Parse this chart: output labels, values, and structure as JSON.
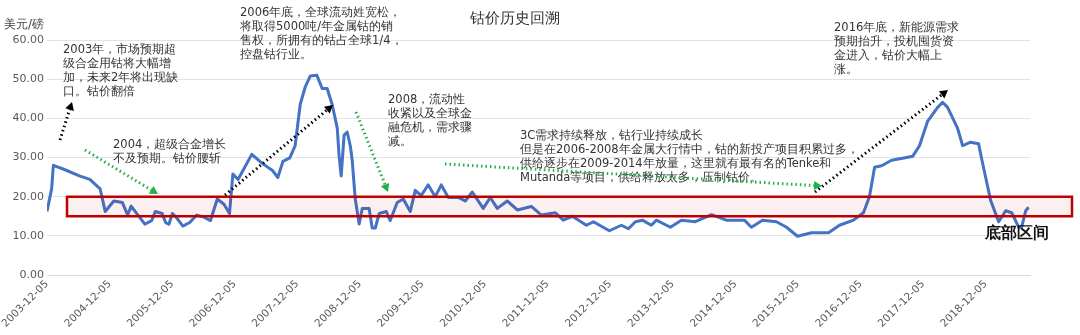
{
  "chart_data": {
    "type": "line",
    "title": "钴价历史回溯",
    "ylabel": "美元/磅",
    "x": [
      "2003-12-05",
      "2004-01-01",
      "2004-01-11",
      "2004-03-12",
      "2004-06-11",
      "2004-08-11",
      "2004-10-10",
      "2004-11-09",
      "2004-12-29",
      "2005-02-17",
      "2005-03-20",
      "2005-04-09",
      "2005-05-19",
      "2005-06-28",
      "2005-08-07",
      "2005-08-28",
      "2005-10-07",
      "2005-10-27",
      "2005-11-16",
      "2005-12-06",
      "2005-12-27",
      "2006-02-05",
      "2006-03-17",
      "2006-04-27",
      "2006-06-05",
      "2006-07-16",
      "2006-08-25",
      "2006-10-04",
      "2006-11-04",
      "2006-11-24",
      "2006-12-24",
      "2007-03-14",
      "2007-05-14",
      "2007-07-13",
      "2007-08-13",
      "2007-09-12",
      "2007-10-22",
      "2007-11-22",
      "2007-12-22",
      "2008-01-20",
      "2008-02-18",
      "2008-03-28",
      "2008-04-28",
      "2008-05-27",
      "2008-06-25",
      "2008-07-25",
      "2008-08-05",
      "2008-08-17",
      "2008-09-03",
      "2008-09-21",
      "2008-10-09",
      "2008-10-20",
      "2008-11-07",
      "2008-11-30",
      "2008-12-18",
      "2009-01-27",
      "2009-02-14",
      "2009-03-04",
      "2009-03-27",
      "2009-05-07",
      "2009-05-30",
      "2009-07-10",
      "2009-08-14",
      "2009-09-24",
      "2009-10-23",
      "2009-11-27",
      "2010-01-07",
      "2010-02-17",
      "2010-03-24",
      "2010-05-04",
      "2010-07-01",
      "2010-08-11",
      "2010-09-21",
      "2010-11-24",
      "2011-01-04",
      "2011-02-14",
      "2011-04-13",
      "2011-06-11",
      "2011-09-01",
      "2011-10-29",
      "2012-01-19",
      "2012-03-05",
      "2012-04-27",
      "2012-07-18",
      "2012-08-28",
      "2012-11-29",
      "2013-02-07",
      "2013-03-20",
      "2013-04-30",
      "2013-06-10",
      "2013-08-01",
      "2013-08-31",
      "2013-11-20",
      "2014-01-24",
      "2014-04-15",
      "2014-07-18",
      "2014-10-13",
      "2015-01-26",
      "2015-03-08",
      "2015-05-12",
      "2015-08-01",
      "2015-09-29",
      "2015-12-02",
      "2016-02-22",
      "2016-05-31",
      "2016-08-03",
      "2016-10-24",
      "2016-12-21",
      "2017-01-25",
      "2017-02-24",
      "2017-04-06",
      "2017-06-03",
      "2017-08-06",
      "2017-10-04",
      "2017-11-13",
      "2017-12-30",
      "2018-02-27",
      "2018-03-28",
      "2018-04-26",
      "2018-06-23",
      "2018-07-23",
      "2018-09-07",
      "2018-10-24",
      "2018-11-16",
      "2019-01-02",
      "2019-02-18",
      "2019-03-31",
      "2019-05-05",
      "2019-06-15",
      "2019-07-02",
      "2019-07-26",
      "2019-08-12"
    ],
    "series": [
      {
        "color": "#4472c4",
        "values": [
          16.2,
          22,
          28,
          27,
          25.3,
          24.4,
          22,
          16.2,
          18.9,
          18.5,
          15.3,
          17.6,
          15.3,
          13,
          13.9,
          16.2,
          15.7,
          13.4,
          13,
          15.7,
          14.8,
          12.5,
          13.4,
          15.3,
          14.8,
          13.9,
          19.4,
          18,
          15.7,
          25.8,
          24.4,
          30.8,
          28.5,
          26.7,
          24.9,
          29,
          29.9,
          33,
          43.6,
          48,
          50.8,
          51,
          47.6,
          47.6,
          43.6,
          37.5,
          30.3,
          25.3,
          35.7,
          36.5,
          33,
          29.4,
          19.4,
          13,
          17,
          17,
          12,
          12,
          15.7,
          16.2,
          13.9,
          18.5,
          19.4,
          16.2,
          21.6,
          20.3,
          23,
          20,
          23,
          19.8,
          19.8,
          18.9,
          21.2,
          17,
          19.8,
          17,
          18.9,
          16.6,
          17.5,
          15.3,
          15.9,
          14,
          15,
          12.7,
          13.6,
          11.3,
          12.7,
          11.8,
          13.6,
          14,
          12.7,
          14,
          12.2,
          14,
          13.6,
          15.4,
          14,
          14,
          12.2,
          14,
          13.6,
          12.2,
          9.9,
          10.8,
          10.8,
          12.7,
          14,
          15.9,
          20,
          27.5,
          27.9,
          29.3,
          29.8,
          30.3,
          33,
          39.2,
          42.8,
          44.1,
          42.8,
          37.5,
          33,
          33.9,
          33.5,
          28.6,
          19.1,
          13.6,
          16.4,
          15.9,
          12.2,
          12.2,
          16.4,
          17.3
        ]
      }
    ],
    "xlim": [
      "2003-12-05",
      "2019-08-20"
    ],
    "xticks": [
      "2003-12-05",
      "2004-12-05",
      "2005-12-05",
      "2006-12-05",
      "2007-12-05",
      "2008-12-05",
      "2009-12-05",
      "2010-12-05",
      "2011-12-05",
      "2012-12-05",
      "2013-12-05",
      "2014-12-05",
      "2015-12-05",
      "2016-12-05",
      "2017-12-05",
      "2018-12-05"
    ],
    "ylim": [
      0,
      60
    ],
    "yticks": [
      {
        "value": 0,
        "label": "0.00"
      },
      {
        "value": 10,
        "label": "10.00"
      },
      {
        "value": 20,
        "label": "20.00"
      },
      {
        "value": 30,
        "label": "30.00"
      },
      {
        "value": 40,
        "label": "40.00"
      },
      {
        "value": 50,
        "label": "50.00"
      },
      {
        "value": 60,
        "label": "60.00"
      }
    ],
    "grid": "y",
    "legend": false,
    "marker": "none",
    "line_style": "solid",
    "bands": [
      {
        "axis": "y",
        "from": 15,
        "to": 20,
        "label": "底部区间",
        "color": "#c00000"
      }
    ],
    "annotations": [
      "2003年，市场预期超级合金用钴将大幅增加，未来2年将出现缺口。钴价翻倍",
      "2004，超级合金增长不及预期。钴价腰斩",
      "2006年底，全球流动姓宽松，将取得5000吨/年金属钴的销售权，所拥有的钴占全球1/4，控盘钴行业。",
      "2008，流动性收紧以及全球金融危机，需求骤减。",
      "3C需求持续释放，钴行业持续成长",
      "但是在2006-2008年金属大行情中，钴的新投产项目积累过多，供给逐步在2009-2014年放量，这里就有最有名的Tenke和Mutanda等项目，供给释放太多，压制钴价。",
      "2016年底，新能源需求预期抬升，投机囤货资金进入，钴价大幅上涨。"
    ]
  }
}
